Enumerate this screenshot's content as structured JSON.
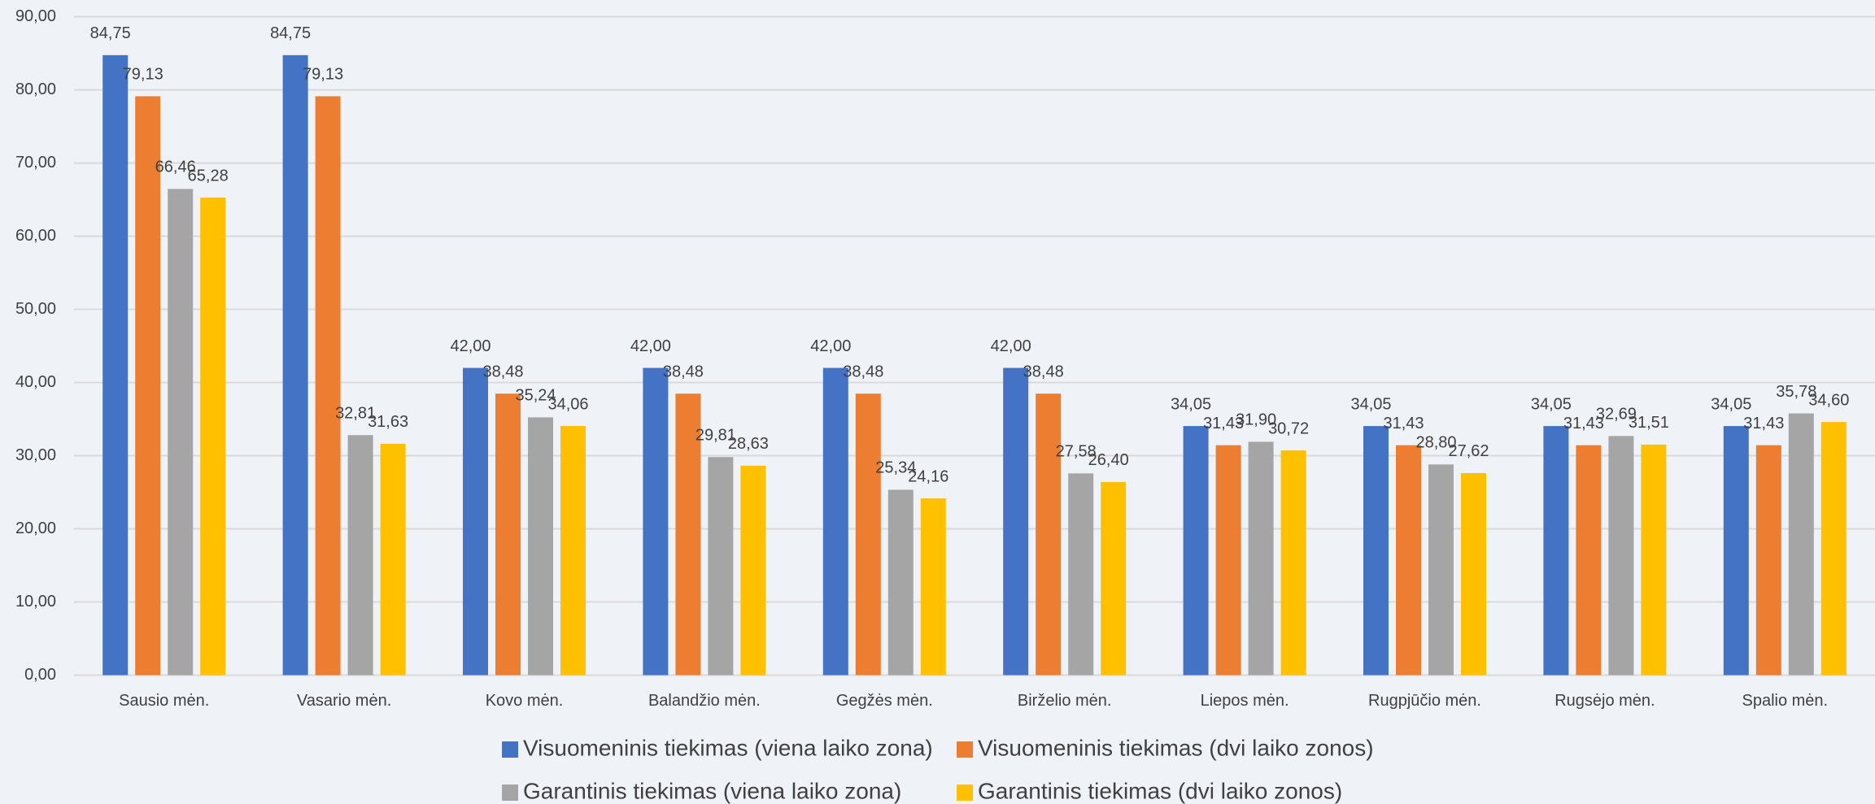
{
  "chart_data": {
    "type": "bar",
    "categories": [
      "Sausio mėn.",
      "Vasario mėn.",
      "Kovo mėn.",
      "Balandžio mėn.",
      "Gegžės mėn.",
      "Birželio mėn.",
      "Liepos mėn.",
      "Rugpjūčio mėn.",
      "Rugsėjo mėn.",
      "Spalio mėn."
    ],
    "series": [
      {
        "name": "Visuomeninis tiekimas (viena laiko zona)",
        "color": "#4472c4",
        "values": [
          84.75,
          84.75,
          42.0,
          42.0,
          42.0,
          42.0,
          34.05,
          34.05,
          34.05,
          34.05
        ],
        "value_labels": [
          "84,75",
          "84,75",
          "42,00",
          "42,00",
          "42,00",
          "42,00",
          "34,05",
          "34,05",
          "34,05",
          "34,05"
        ]
      },
      {
        "name": "Visuomeninis tiekimas (dvi laiko zonos)",
        "color": "#ed7d31",
        "values": [
          79.13,
          79.13,
          38.48,
          38.48,
          38.48,
          38.48,
          31.43,
          31.43,
          31.43,
          31.43
        ],
        "value_labels": [
          "79,13",
          "79,13",
          "38,48",
          "38,48",
          "38,48",
          "38,48",
          "31,43",
          "31,43",
          "31,43",
          "31,43"
        ]
      },
      {
        "name": "Garantinis tiekimas (viena laiko zona)",
        "color": "#a5a5a5",
        "values": [
          66.46,
          32.81,
          35.24,
          29.81,
          25.34,
          27.58,
          31.9,
          28.8,
          32.69,
          35.78
        ],
        "value_labels": [
          "66,46",
          "32,81",
          "35,24",
          "29,81",
          "25,34",
          "27,58",
          "31,90",
          "28,80",
          "32,69",
          "35,78"
        ]
      },
      {
        "name": "Garantinis tiekimas (dvi laiko zonos)",
        "color": "#ffc000",
        "values": [
          65.28,
          31.63,
          34.06,
          28.63,
          24.16,
          26.4,
          30.72,
          27.62,
          31.51,
          34.6
        ],
        "value_labels": [
          "65,28",
          "31,63",
          "34,06",
          "28,63",
          "24,16",
          "26,40",
          "30,72",
          "27,62",
          "31,51",
          "34,60"
        ]
      }
    ],
    "ylim": [
      0,
      90
    ],
    "yticks": [
      {
        "value": 0,
        "label": "0,00"
      },
      {
        "value": 10,
        "label": "10,00"
      },
      {
        "value": 20,
        "label": "20,00"
      },
      {
        "value": 30,
        "label": "30,00"
      },
      {
        "value": 40,
        "label": "40,00"
      },
      {
        "value": 50,
        "label": "50,00"
      },
      {
        "value": 60,
        "label": "60,00"
      },
      {
        "value": 70,
        "label": "70,00"
      },
      {
        "value": 80,
        "label": "80,00"
      },
      {
        "value": 90,
        "label": "90,00"
      }
    ],
    "grid": true,
    "legend": "bottom"
  }
}
